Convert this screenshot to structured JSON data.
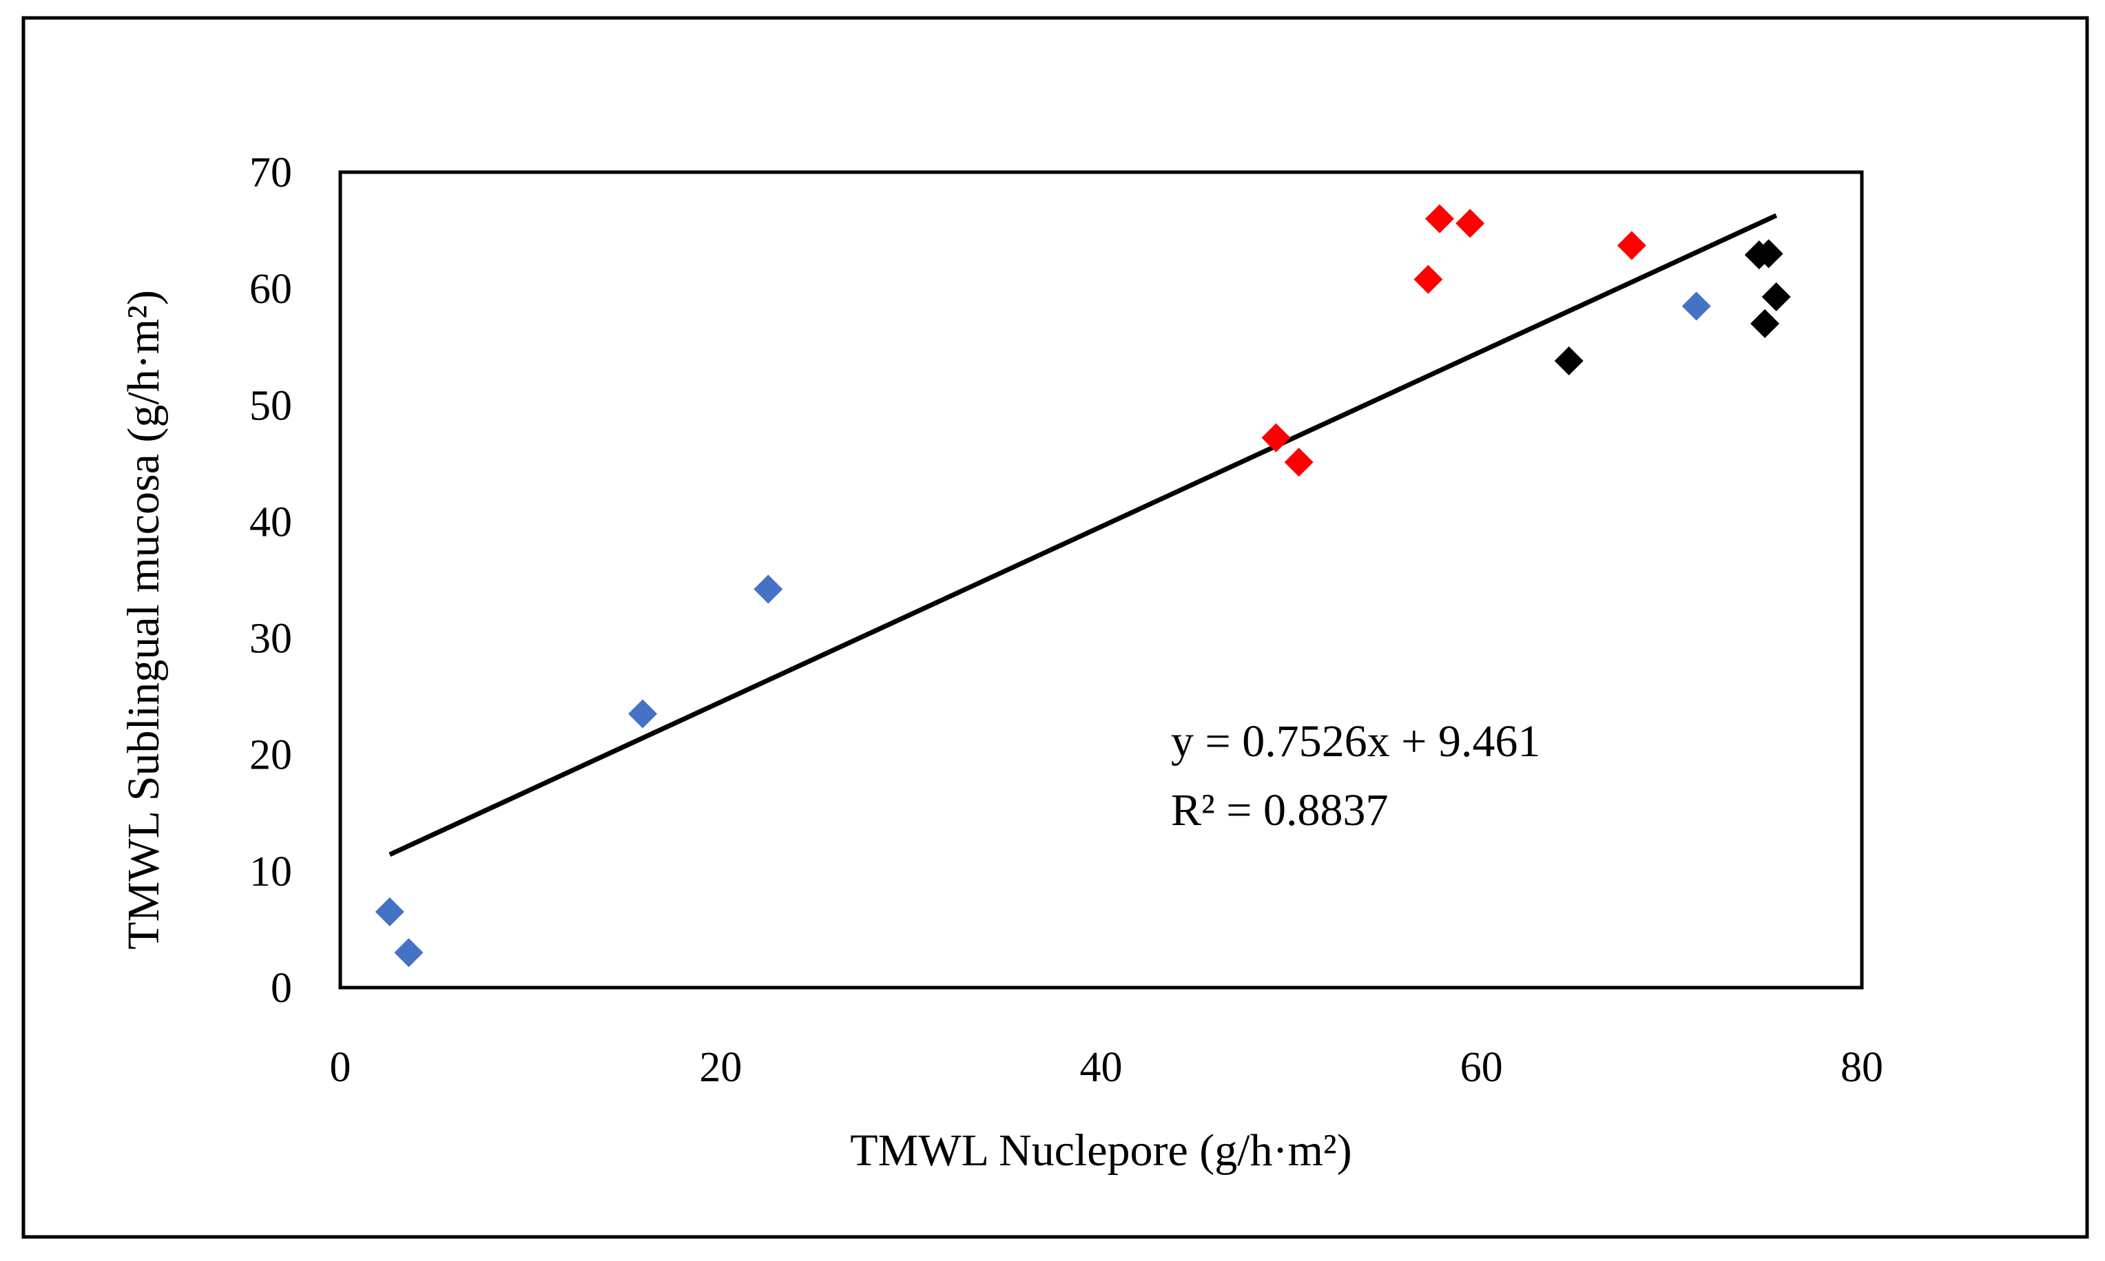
{
  "chart_data": {
    "type": "scatter",
    "title": "",
    "xlabel": "TMWL Nuclepore (g/h·m²)",
    "ylabel": "TMWL Sublingual mucosa (g/h·m²)",
    "xlim": [
      0,
      80
    ],
    "ylim": [
      0,
      70
    ],
    "x_ticks": [
      0,
      20,
      40,
      60,
      80
    ],
    "y_ticks": [
      0,
      10,
      20,
      30,
      40,
      50,
      60,
      70
    ],
    "x_tick_labels": [
      "0",
      "20",
      "40",
      "60",
      "80"
    ],
    "y_tick_labels": [
      "0",
      "10",
      "20",
      "30",
      "40",
      "50",
      "60",
      "70"
    ],
    "grid": false,
    "legend": "none",
    "marker": "diamond",
    "series": [
      {
        "name": "blue",
        "color": "#4472C4",
        "points": [
          [
            2.6,
            6.5
          ],
          [
            3.6,
            3.0
          ],
          [
            15.9,
            23.5
          ],
          [
            22.5,
            34.2
          ],
          [
            71.3,
            58.5
          ]
        ]
      },
      {
        "name": "red",
        "color": "#FF0000",
        "points": [
          [
            49.2,
            47.2
          ],
          [
            50.4,
            45.1
          ],
          [
            57.2,
            60.8
          ],
          [
            57.8,
            66.0
          ],
          [
            59.4,
            65.6
          ],
          [
            67.9,
            63.7
          ]
        ]
      },
      {
        "name": "black",
        "color": "#000000",
        "points": [
          [
            64.6,
            53.8
          ],
          [
            74.6,
            62.9
          ],
          [
            75.1,
            63.0
          ],
          [
            74.9,
            57.0
          ],
          [
            75.5,
            59.3
          ]
        ]
      }
    ],
    "trendline": {
      "slope": 0.7526,
      "intercept": 9.461,
      "x_range": [
        2.6,
        75.5
      ],
      "color": "#000000"
    },
    "annotations": {
      "equation": "y = 0.7526x + 9.461",
      "r_squared": "R² = 0.8837"
    }
  }
}
